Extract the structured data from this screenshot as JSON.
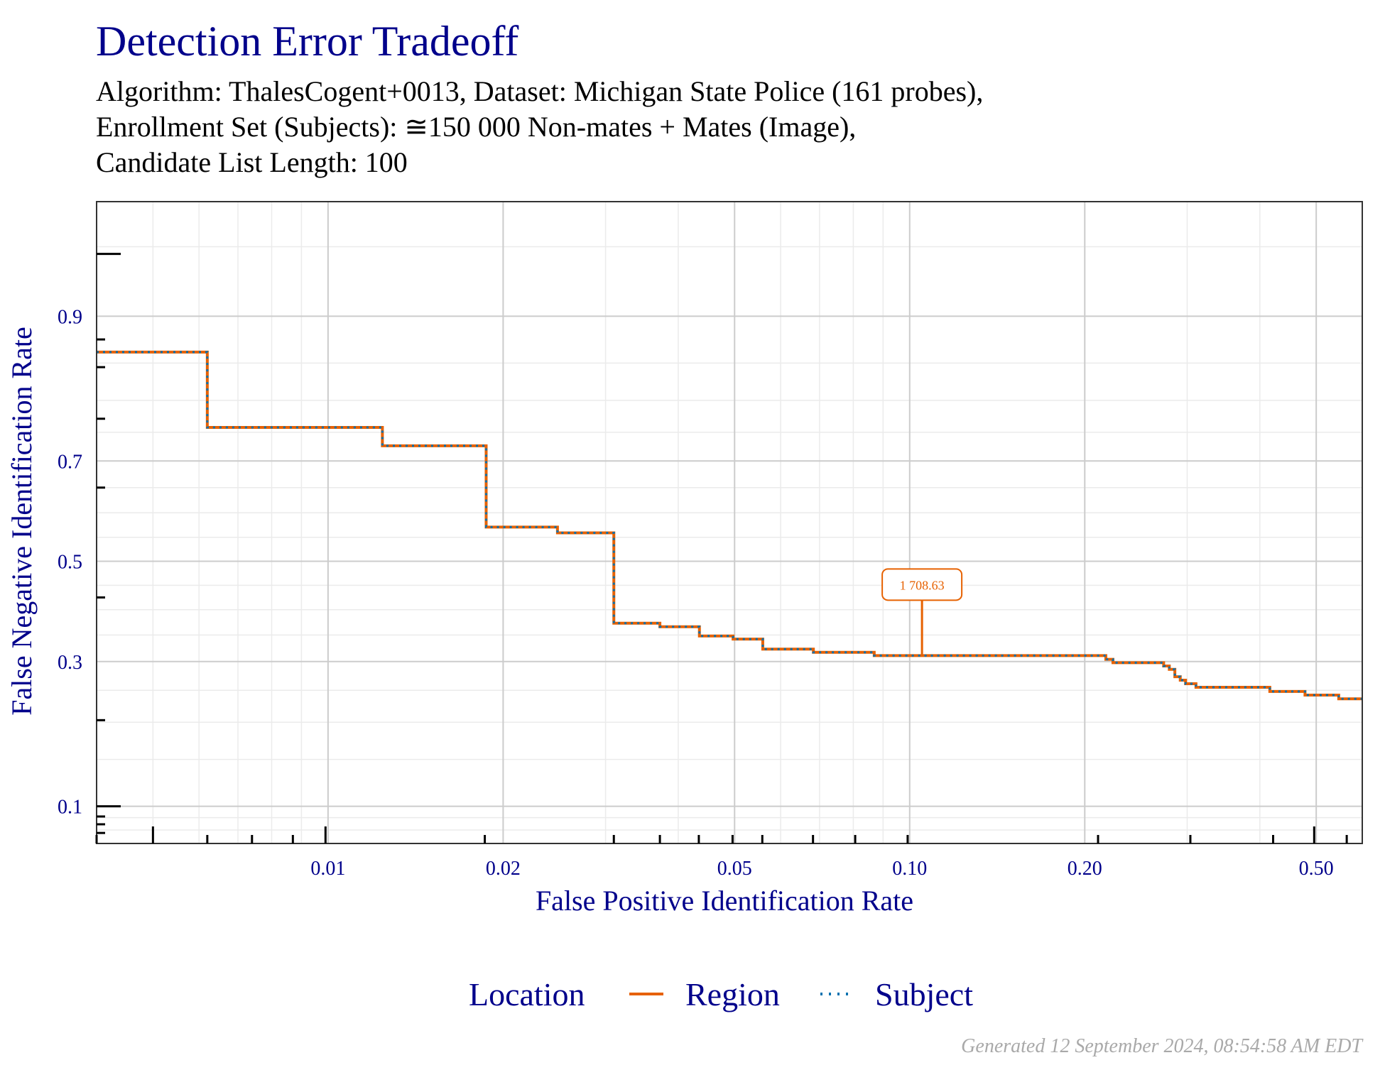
{
  "title": "Detection Error Tradeoff",
  "subtitle_lines": [
    "Algorithm: ThalesCogent+0013, Dataset: Michigan State Police (161 probes),",
    "Enrollment Set (Subjects): ≅150 000 Non-mates + Mates (Image),",
    "Candidate List Length: 100"
  ],
  "footer": "Generated 12 September 2024, 08:54:58 AM EDT",
  "legend": {
    "title": "Location",
    "items": [
      "Region",
      "Subject"
    ]
  },
  "colors": {
    "title": "#00008b",
    "region": "#e66101",
    "subject": "#0571b0",
    "grid_major": "#cccccc",
    "grid_minor": "#ebebeb"
  },
  "chart_data": {
    "type": "line",
    "title": "Detection Error Tradeoff",
    "xlabel": "False Positive Identification Rate",
    "ylabel": "False Negative Identification Rate",
    "x_scale": "log",
    "y_scale": "probit",
    "xlim": [
      0.004,
      0.6
    ],
    "ylim": [
      0.07,
      0.97
    ],
    "x_ticks": [
      0.01,
      0.02,
      0.05,
      0.1,
      0.2,
      0.5
    ],
    "x_tick_labels": [
      "0.01",
      "0.02",
      "0.05",
      "0.10",
      "0.20",
      "0.50"
    ],
    "y_ticks": [
      0.1,
      0.3,
      0.5,
      0.7,
      0.9
    ],
    "y_tick_labels": [
      "0.1",
      "0.3",
      "0.5",
      "0.7",
      "0.9"
    ],
    "grid": true,
    "legend_position": "bottom",
    "series": [
      {
        "name": "Region",
        "style": "solid",
        "x": [
          0.004,
          0.0062,
          0.0062,
          0.0124,
          0.0124,
          0.0187,
          0.0187,
          0.0248,
          0.0248,
          0.031,
          0.031,
          0.0372,
          0.0372,
          0.0435,
          0.0435,
          0.0497,
          0.0497,
          0.0559,
          0.0559,
          0.0683,
          0.0683,
          0.0869,
          0.0869,
          0.2174,
          0.2174,
          0.2236,
          0.2236,
          0.2733,
          0.2733,
          0.2795,
          0.2795,
          0.2857,
          0.2857,
          0.2919,
          0.2919,
          0.2981,
          0.2981,
          0.3106,
          0.3106,
          0.4161,
          0.4161,
          0.4783,
          0.4783,
          0.5466,
          0.5466,
          0.6
        ],
        "y": [
          0.863,
          0.863,
          0.758,
          0.758,
          0.727,
          0.727,
          0.571,
          0.571,
          0.559,
          0.559,
          0.373,
          0.373,
          0.366,
          0.366,
          0.348,
          0.348,
          0.342,
          0.342,
          0.323,
          0.323,
          0.317,
          0.317,
          0.311,
          0.311,
          0.304,
          0.304,
          0.298,
          0.298,
          0.292,
          0.292,
          0.286,
          0.286,
          0.273,
          0.273,
          0.267,
          0.267,
          0.261,
          0.261,
          0.255,
          0.255,
          0.248,
          0.248,
          0.242,
          0.242,
          0.236,
          0.236
        ]
      },
      {
        "name": "Subject",
        "style": "dotted",
        "x": [
          0.004,
          0.0062,
          0.0062,
          0.0124,
          0.0124,
          0.0187,
          0.0187,
          0.0248,
          0.0248,
          0.031,
          0.031,
          0.0372,
          0.0372,
          0.0435,
          0.0435,
          0.0497,
          0.0497,
          0.0559,
          0.0559,
          0.0683,
          0.0683,
          0.0869,
          0.0869,
          0.2174,
          0.2174,
          0.2236,
          0.2236,
          0.2733,
          0.2733,
          0.2795,
          0.2795,
          0.2857,
          0.2857,
          0.2919,
          0.2919,
          0.2981,
          0.2981,
          0.3106,
          0.3106,
          0.4161,
          0.4161,
          0.4783,
          0.4783,
          0.5466,
          0.5466,
          0.6
        ],
        "y": [
          0.863,
          0.863,
          0.758,
          0.758,
          0.727,
          0.727,
          0.571,
          0.571,
          0.559,
          0.559,
          0.373,
          0.373,
          0.366,
          0.366,
          0.348,
          0.348,
          0.342,
          0.342,
          0.323,
          0.323,
          0.317,
          0.317,
          0.311,
          0.311,
          0.304,
          0.304,
          0.298,
          0.298,
          0.292,
          0.292,
          0.286,
          0.286,
          0.273,
          0.273,
          0.267,
          0.267,
          0.261,
          0.261,
          0.255,
          0.255,
          0.248,
          0.248,
          0.242,
          0.242,
          0.236,
          0.236
        ]
      }
    ],
    "annotations": [
      {
        "text": "1 708.63",
        "x": 0.105,
        "y": 0.311,
        "series": "Region"
      }
    ]
  }
}
